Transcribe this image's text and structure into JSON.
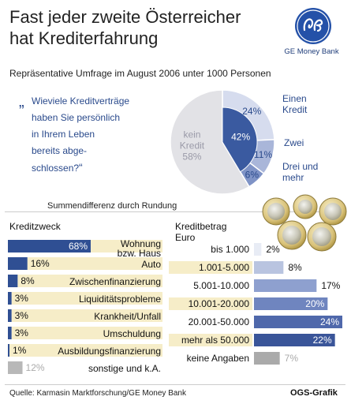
{
  "header": {
    "title_line1": "Fast jeder zweite Österreicher",
    "title_line2": "hat Krediterfahrung",
    "subtitle": "Repräsentative Umfrage im August 2006 unter 1000 Personen",
    "brand": "GE Money Bank"
  },
  "question": {
    "open_quote": "„",
    "lines": [
      "Wieviele Kreditverträge",
      "haben Sie persönlich",
      "in Ihrem Leben",
      "bereits abge-",
      "schlossen?"
    ],
    "close_quote": "“"
  },
  "note": "Summendifferenz durch Rundung",
  "chart_data": [
    {
      "type": "pie",
      "categories": [
        "Einen Kredit",
        "Zwei",
        "Drei und mehr",
        "kein Kredit"
      ],
      "values": [
        24,
        11,
        6,
        58
      ],
      "total_with_credit": 42,
      "labels": {
        "einen_kredit": [
          "Einen",
          "Kredit"
        ],
        "zwei": "Zwei",
        "drei_und_mehr": [
          "Drei und",
          "mehr"
        ],
        "kein_kredit": [
          "kein",
          "Kredit"
        ]
      },
      "value_labels": [
        "24%",
        "11%",
        "6%",
        "58%"
      ],
      "total_label": "42%",
      "colors": [
        "#d6dcee",
        "#a9b6d9",
        "#7f93c6",
        "#e2e2e6"
      ],
      "inner_color": "#3a5aa0"
    },
    {
      "type": "bar",
      "title": "Kreditzweck",
      "categories": [
        "Wohnung bzw. Haus",
        "Auto",
        "Zwischenfinanzierung",
        "Liquiditätsprobleme",
        "Krankheit/Unfall",
        "Umschuldung",
        "Ausbildungsfinanzierung",
        "sonstige und k.A."
      ],
      "category_lines": [
        [
          "Wohnung",
          "bzw. Haus"
        ],
        [
          "Auto"
        ],
        [
          "Zwischenfinanzierung"
        ],
        [
          "Liquiditätsprobleme"
        ],
        [
          "Krankheit/Unfall"
        ],
        [
          "Umschuldung"
        ],
        [
          "Ausbildungsfinanzierung"
        ],
        [
          "sonstige und k.A."
        ]
      ],
      "values": [
        68,
        16,
        8,
        3,
        3,
        3,
        1,
        12
      ],
      "value_labels": [
        "68%",
        "16%",
        "8%",
        "3%",
        "3%",
        "3%",
        "1%",
        "12%"
      ],
      "xlim": [
        0,
        100
      ]
    },
    {
      "type": "bar",
      "title": [
        "Kreditbetrag",
        "Euro"
      ],
      "categories": [
        "bis 1.000",
        "1.001-5.000",
        "5.001-10.000",
        "10.001-20.000",
        "20.001-50.000",
        "mehr als 50.000",
        "keine Angaben"
      ],
      "values": [
        2,
        8,
        17,
        20,
        24,
        22,
        7
      ],
      "value_labels": [
        "2%",
        "8%",
        "17%",
        "20%",
        "24%",
        "22%",
        "7%"
      ],
      "xlim": [
        0,
        26
      ]
    }
  ],
  "footer": {
    "source": "Quelle: Karmasin Marktforschung/GE Money Bank",
    "credit": "OGS-Grafik"
  },
  "colors": {
    "bar_dark": "#2f4f93",
    "bar_light_right": [
      "#e8ecf5",
      "#b9c4e0",
      "#8ea0cf",
      "#6f85bf",
      "#4f68ab",
      "#3a5599",
      "#aaaaaa"
    ],
    "label_bg": "#f6edc8",
    "gray_bar": "#b8b8b8"
  }
}
